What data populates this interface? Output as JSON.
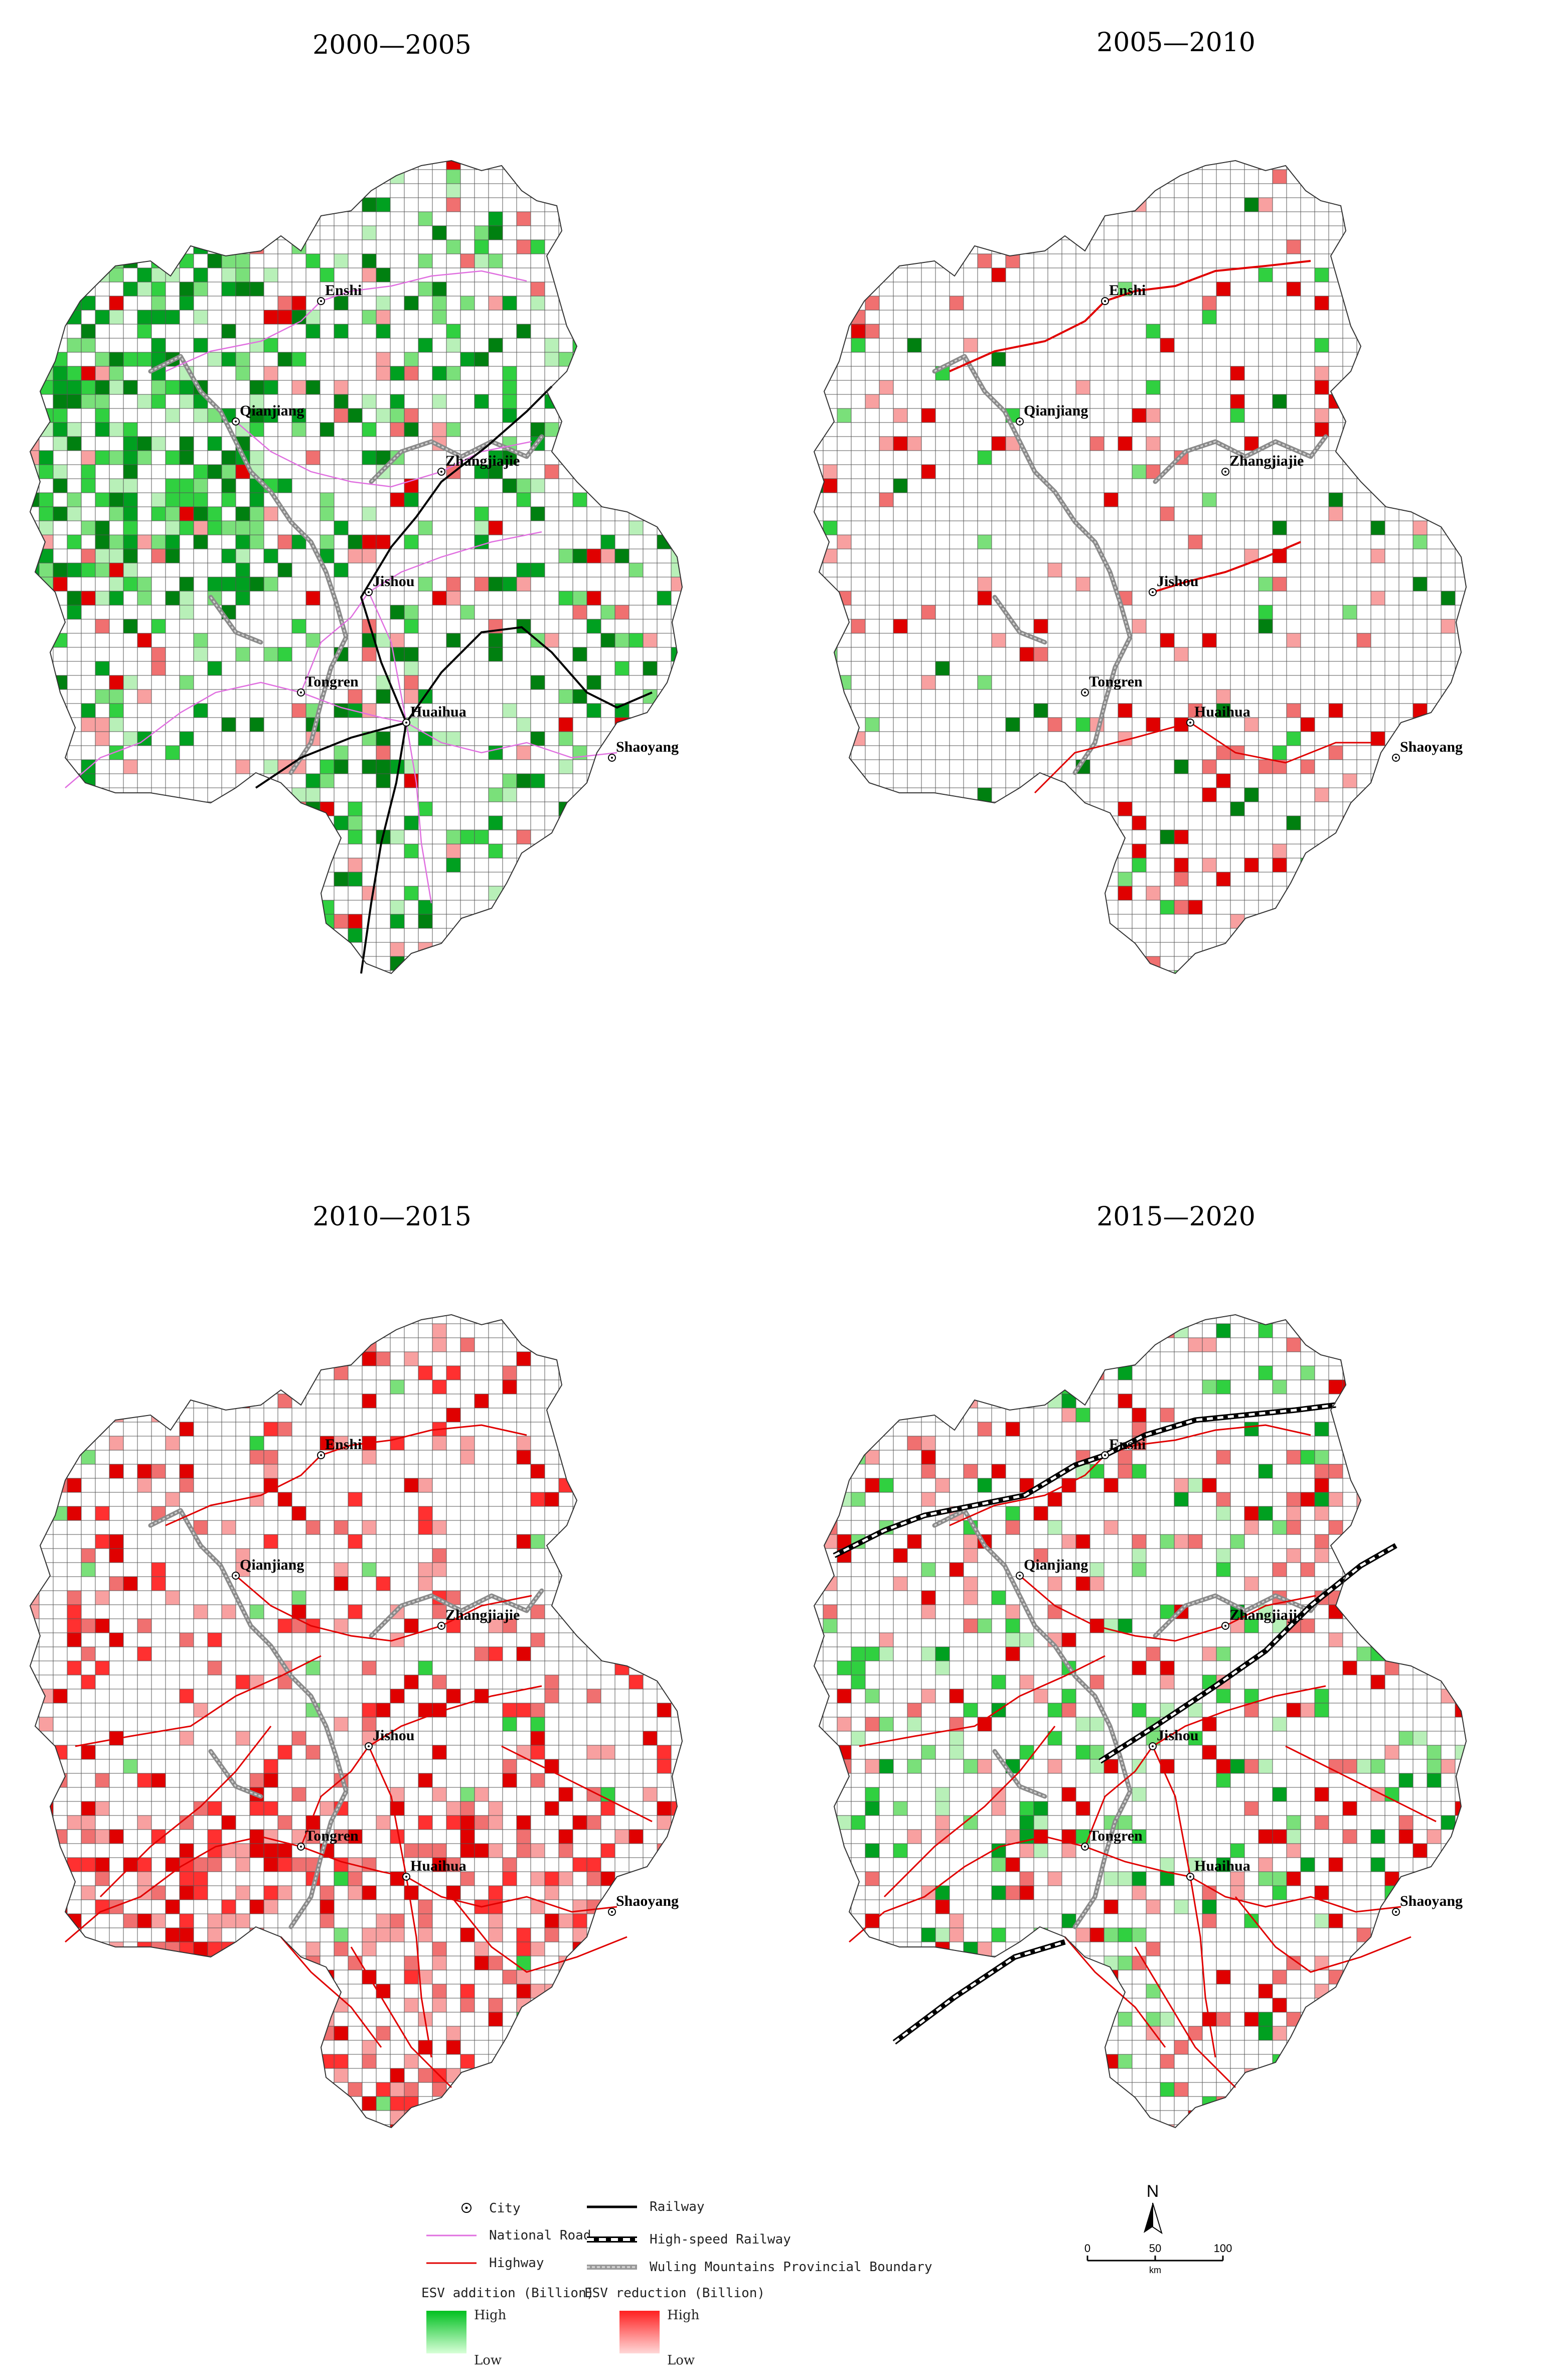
{
  "panels": [
    {
      "title": "2000—2005",
      "key": "p1"
    },
    {
      "title": "2005—2010",
      "key": "p2"
    },
    {
      "title": "2010—2015",
      "key": "p3"
    },
    {
      "title": "2015—2020",
      "key": "p4"
    }
  ],
  "cities": [
    "Enshi",
    "Qianjiang",
    "Zhangjiajie",
    "Jishou",
    "Tongren",
    "Huaihua",
    "Shaoyang"
  ],
  "legend": {
    "city": "City",
    "national_road": "National Road",
    "highway": "Highway",
    "railway": "Railway",
    "hsr": "High-speed Railway",
    "boundary": "Wuling Mountains Provincial Boundary",
    "esv_add": "ESV addition (Billion)",
    "esv_red": "ESV reduction (Billion)",
    "high": "High",
    "low": "Low",
    "add_high_color": "#00c020",
    "add_low_color": "#d8ffd8",
    "red_high_color": "#ff2020",
    "red_low_color": "#ffd8d8"
  },
  "scale": {
    "north": "N",
    "t0": "0",
    "t1": "50",
    "t2": "100",
    "unit": "km"
  }
}
